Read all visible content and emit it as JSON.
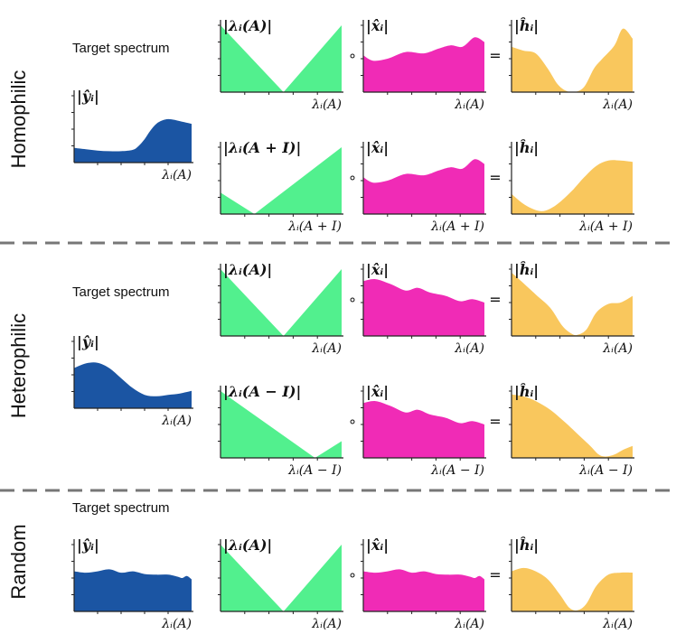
{
  "colors": {
    "target": "#1b55a3",
    "adjacency": "#52f08e",
    "signal": "#f02bb6",
    "output": "#f9c75d",
    "divider": "#777777",
    "axis": "#222222"
  },
  "sections": [
    {
      "label": "Homophilic"
    },
    {
      "label": "Heterophilic"
    },
    {
      "label": "Random"
    }
  ],
  "target_label": "Target spectrum",
  "operators": {
    "hadamard": "∘",
    "equals": "="
  },
  "labels": {
    "y_hat": "|ŷᵢ|",
    "x_hat": "|x̂ᵢ|",
    "h_hat": "|ĥᵢ|",
    "lam_A": "|λᵢ(A)|",
    "lam_A_plus_I": "|λᵢ(A + I)|",
    "lam_A_minus_I": "|λᵢ(A − I)|",
    "x_lam_A": "λᵢ(A)",
    "x_lam_A_plus_I": "λᵢ(A + I)",
    "x_lam_A_minus_I": "λᵢ(A − I)"
  },
  "chart_data": [
    {
      "type": "area",
      "id": "homo-target",
      "series": "target",
      "title": "|ŷᵢ|",
      "xlabel": "λᵢ(A)",
      "x": [
        0,
        0.1,
        0.2,
        0.3,
        0.4,
        0.5,
        0.55,
        0.6,
        0.65,
        0.7,
        0.75,
        0.8,
        0.85,
        0.9,
        1.0
      ],
      "y": [
        0.22,
        0.2,
        0.18,
        0.17,
        0.17,
        0.19,
        0.25,
        0.35,
        0.48,
        0.58,
        0.63,
        0.65,
        0.64,
        0.62,
        0.58
      ],
      "ylim": [
        0,
        1
      ]
    },
    {
      "type": "area",
      "id": "homo-lamA",
      "series": "adjacency",
      "title": "|λᵢ(A)|",
      "xlabel": "λᵢ(A)",
      "x": [
        0,
        0.52,
        1
      ],
      "y": [
        1,
        0,
        1
      ],
      "ylim": [
        0,
        1
      ]
    },
    {
      "type": "area",
      "id": "homo-x1",
      "series": "signal",
      "title": "|x̂ᵢ|",
      "xlabel": "λᵢ(A)",
      "x": [
        0,
        0.08,
        0.2,
        0.35,
        0.5,
        0.62,
        0.72,
        0.82,
        0.92,
        1.0
      ],
      "y": [
        0.55,
        0.47,
        0.5,
        0.6,
        0.58,
        0.65,
        0.7,
        0.68,
        0.82,
        0.75
      ],
      "ylim": [
        0,
        1
      ]
    },
    {
      "type": "area",
      "id": "homo-h1",
      "series": "output",
      "title": "|ĥᵢ|",
      "xlabel": "λᵢ(A)",
      "x": [
        0,
        0.1,
        0.2,
        0.3,
        0.38,
        0.45,
        0.52,
        0.6,
        0.68,
        0.75,
        0.85,
        0.92,
        1.0
      ],
      "y": [
        0.68,
        0.62,
        0.58,
        0.35,
        0.12,
        0.02,
        0.0,
        0.08,
        0.35,
        0.5,
        0.7,
        0.95,
        0.8
      ],
      "ylim": [
        0,
        1
      ]
    },
    {
      "type": "area",
      "id": "homo-lamApI",
      "series": "adjacency",
      "title": "|λᵢ(A + I)|",
      "xlabel": "λᵢ(A + I)",
      "x": [
        0,
        0.28,
        1
      ],
      "y": [
        0.32,
        0,
        1
      ],
      "ylim": [
        0,
        1
      ]
    },
    {
      "type": "area",
      "id": "homo-x2",
      "series": "signal",
      "title": "|x̂ᵢ|",
      "xlabel": "λᵢ(A + I)",
      "x": [
        0,
        0.08,
        0.2,
        0.35,
        0.5,
        0.62,
        0.72,
        0.82,
        0.92,
        1.0
      ],
      "y": [
        0.55,
        0.47,
        0.5,
        0.6,
        0.58,
        0.65,
        0.7,
        0.68,
        0.82,
        0.75
      ],
      "ylim": [
        0,
        1
      ]
    },
    {
      "type": "area",
      "id": "homo-h2",
      "series": "output",
      "title": "|ĥᵢ|",
      "xlabel": "λᵢ(A + I)",
      "x": [
        0,
        0.1,
        0.2,
        0.28,
        0.38,
        0.5,
        0.6,
        0.7,
        0.8,
        0.9,
        1.0
      ],
      "y": [
        0.3,
        0.15,
        0.06,
        0.05,
        0.15,
        0.35,
        0.55,
        0.72,
        0.8,
        0.8,
        0.78
      ],
      "ylim": [
        0,
        1
      ]
    },
    {
      "type": "area",
      "id": "hetero-target",
      "series": "target",
      "title": "|ŷᵢ|",
      "xlabel": "λᵢ(A)",
      "x": [
        0,
        0.1,
        0.2,
        0.3,
        0.4,
        0.5,
        0.6,
        0.7,
        0.8,
        0.9,
        1.0
      ],
      "y": [
        0.6,
        0.67,
        0.68,
        0.6,
        0.45,
        0.3,
        0.2,
        0.18,
        0.2,
        0.22,
        0.26
      ],
      "ylim": [
        0,
        1
      ]
    },
    {
      "type": "area",
      "id": "hetero-lamA",
      "series": "adjacency",
      "title": "|λᵢ(A)|",
      "xlabel": "λᵢ(A)",
      "x": [
        0,
        0.52,
        1
      ],
      "y": [
        1,
        0,
        1
      ],
      "ylim": [
        0,
        1
      ]
    },
    {
      "type": "area",
      "id": "hetero-x1",
      "series": "signal",
      "title": "|x̂ᵢ|",
      "xlabel": "λᵢ(A)",
      "x": [
        0,
        0.1,
        0.22,
        0.35,
        0.45,
        0.55,
        0.68,
        0.8,
        0.9,
        1.0
      ],
      "y": [
        0.82,
        0.85,
        0.78,
        0.68,
        0.72,
        0.65,
        0.6,
        0.52,
        0.55,
        0.5
      ],
      "ylim": [
        0,
        1
      ]
    },
    {
      "type": "area",
      "id": "hetero-h1",
      "series": "output",
      "title": "|ĥᵢ|",
      "xlabel": "λᵢ(A)",
      "x": [
        0,
        0.08,
        0.2,
        0.32,
        0.42,
        0.5,
        0.55,
        0.62,
        0.7,
        0.8,
        0.9,
        1.0
      ],
      "y": [
        0.95,
        0.82,
        0.62,
        0.42,
        0.15,
        0.03,
        0.02,
        0.1,
        0.35,
        0.48,
        0.5,
        0.6
      ],
      "ylim": [
        0,
        1
      ]
    },
    {
      "type": "area",
      "id": "hetero-lamAmI",
      "series": "adjacency",
      "title": "|λᵢ(A − I)|",
      "xlabel": "λᵢ(A − I)",
      "x": [
        0,
        0.78,
        1
      ],
      "y": [
        1,
        0,
        0.25
      ],
      "ylim": [
        0,
        1
      ]
    },
    {
      "type": "area",
      "id": "hetero-x2",
      "series": "signal",
      "title": "|x̂ᵢ|",
      "xlabel": "λᵢ(A − I)",
      "x": [
        0,
        0.1,
        0.22,
        0.35,
        0.45,
        0.55,
        0.68,
        0.8,
        0.9,
        1.0
      ],
      "y": [
        0.82,
        0.85,
        0.78,
        0.68,
        0.72,
        0.65,
        0.6,
        0.52,
        0.55,
        0.5
      ],
      "ylim": [
        0,
        1
      ]
    },
    {
      "type": "area",
      "id": "hetero-h2",
      "series": "output",
      "title": "|ĥᵢ|",
      "xlabel": "λᵢ(A − I)",
      "x": [
        0,
        0.1,
        0.2,
        0.32,
        0.45,
        0.55,
        0.65,
        0.72,
        0.78,
        0.85,
        0.92,
        1.0
      ],
      "y": [
        0.95,
        0.92,
        0.85,
        0.72,
        0.52,
        0.35,
        0.18,
        0.05,
        0.02,
        0.05,
        0.12,
        0.18
      ],
      "ylim": [
        0,
        1
      ]
    },
    {
      "type": "area",
      "id": "rand-target",
      "series": "target",
      "title": "|ŷᵢ|",
      "xlabel": "λᵢ(A)",
      "x": [
        0,
        0.1,
        0.2,
        0.3,
        0.4,
        0.5,
        0.6,
        0.7,
        0.8,
        0.88,
        0.92,
        0.96,
        1.0
      ],
      "y": [
        0.6,
        0.58,
        0.6,
        0.63,
        0.58,
        0.6,
        0.56,
        0.55,
        0.55,
        0.52,
        0.5,
        0.53,
        0.48
      ],
      "ylim": [
        0,
        1
      ]
    },
    {
      "type": "area",
      "id": "rand-lamA",
      "series": "adjacency",
      "title": "|λᵢ(A)|",
      "xlabel": "λᵢ(A)",
      "x": [
        0,
        0.52,
        1
      ],
      "y": [
        1,
        0,
        1
      ],
      "ylim": [
        0,
        1
      ]
    },
    {
      "type": "area",
      "id": "rand-x",
      "series": "signal",
      "title": "|x̂ᵢ|",
      "xlabel": "λᵢ(A)",
      "x": [
        0,
        0.1,
        0.2,
        0.3,
        0.4,
        0.5,
        0.6,
        0.7,
        0.8,
        0.88,
        0.92,
        0.96,
        1.0
      ],
      "y": [
        0.6,
        0.58,
        0.6,
        0.63,
        0.58,
        0.6,
        0.56,
        0.55,
        0.55,
        0.52,
        0.5,
        0.53,
        0.48
      ],
      "ylim": [
        0,
        1
      ]
    },
    {
      "type": "area",
      "id": "rand-h",
      "series": "output",
      "title": "|ĥᵢ|",
      "xlabel": "λᵢ(A)",
      "x": [
        0,
        0.1,
        0.2,
        0.3,
        0.4,
        0.48,
        0.55,
        0.62,
        0.7,
        0.8,
        0.9,
        1.0
      ],
      "y": [
        0.6,
        0.65,
        0.6,
        0.48,
        0.25,
        0.05,
        0.02,
        0.12,
        0.38,
        0.55,
        0.58,
        0.58
      ],
      "ylim": [
        0,
        1
      ]
    }
  ]
}
